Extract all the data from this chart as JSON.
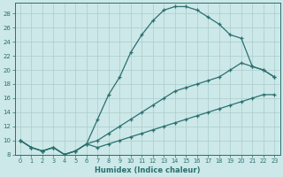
{
  "xlabel": "Humidex (Indice chaleur)",
  "bg_color": "#cde8e8",
  "grid_color": "#aacccc",
  "line_color": "#2a7070",
  "xlim": [
    -0.5,
    23.5
  ],
  "ylim": [
    8,
    29.5
  ],
  "xticks": [
    0,
    1,
    2,
    3,
    4,
    5,
    6,
    7,
    8,
    9,
    10,
    11,
    12,
    13,
    14,
    15,
    16,
    17,
    18,
    19,
    20,
    21,
    22,
    23
  ],
  "yticks": [
    8,
    10,
    12,
    14,
    16,
    18,
    20,
    22,
    24,
    26,
    28
  ],
  "c1x": [
    0,
    1,
    2,
    3,
    4,
    5,
    6,
    7,
    8,
    9,
    10,
    11,
    12,
    13,
    14,
    15,
    16,
    17,
    18,
    19,
    20,
    21,
    22,
    23
  ],
  "c1y": [
    10,
    9,
    8.5,
    9,
    8,
    8.5,
    9.5,
    13,
    16.5,
    19,
    22.5,
    25,
    27,
    28.5,
    29,
    29,
    28.5,
    27.5,
    26.5,
    25,
    24.5,
    20.5,
    20,
    19
  ],
  "c2x": [
    0,
    1,
    2,
    3,
    4,
    5,
    6,
    7,
    8,
    9,
    10,
    11,
    12,
    13,
    14,
    15,
    16,
    17,
    18,
    19,
    20,
    21,
    22,
    23
  ],
  "c2y": [
    10,
    9,
    8.5,
    9,
    8,
    8.5,
    9.5,
    10,
    11,
    12,
    13,
    14,
    15,
    16,
    17,
    17.5,
    18,
    18.5,
    19,
    20,
    21,
    20.5,
    20,
    19
  ],
  "c3x": [
    0,
    1,
    2,
    3,
    4,
    5,
    6,
    7,
    8,
    9,
    10,
    11,
    12,
    13,
    14,
    15,
    16,
    17,
    18,
    19,
    20,
    21,
    22,
    23
  ],
  "c3y": [
    10,
    9,
    8.5,
    9,
    8,
    8.5,
    9.5,
    9,
    9.5,
    10,
    10.5,
    11,
    11.5,
    12,
    12.5,
    13,
    13.5,
    14,
    14.5,
    15,
    15.5,
    16,
    16.5,
    16.5
  ]
}
